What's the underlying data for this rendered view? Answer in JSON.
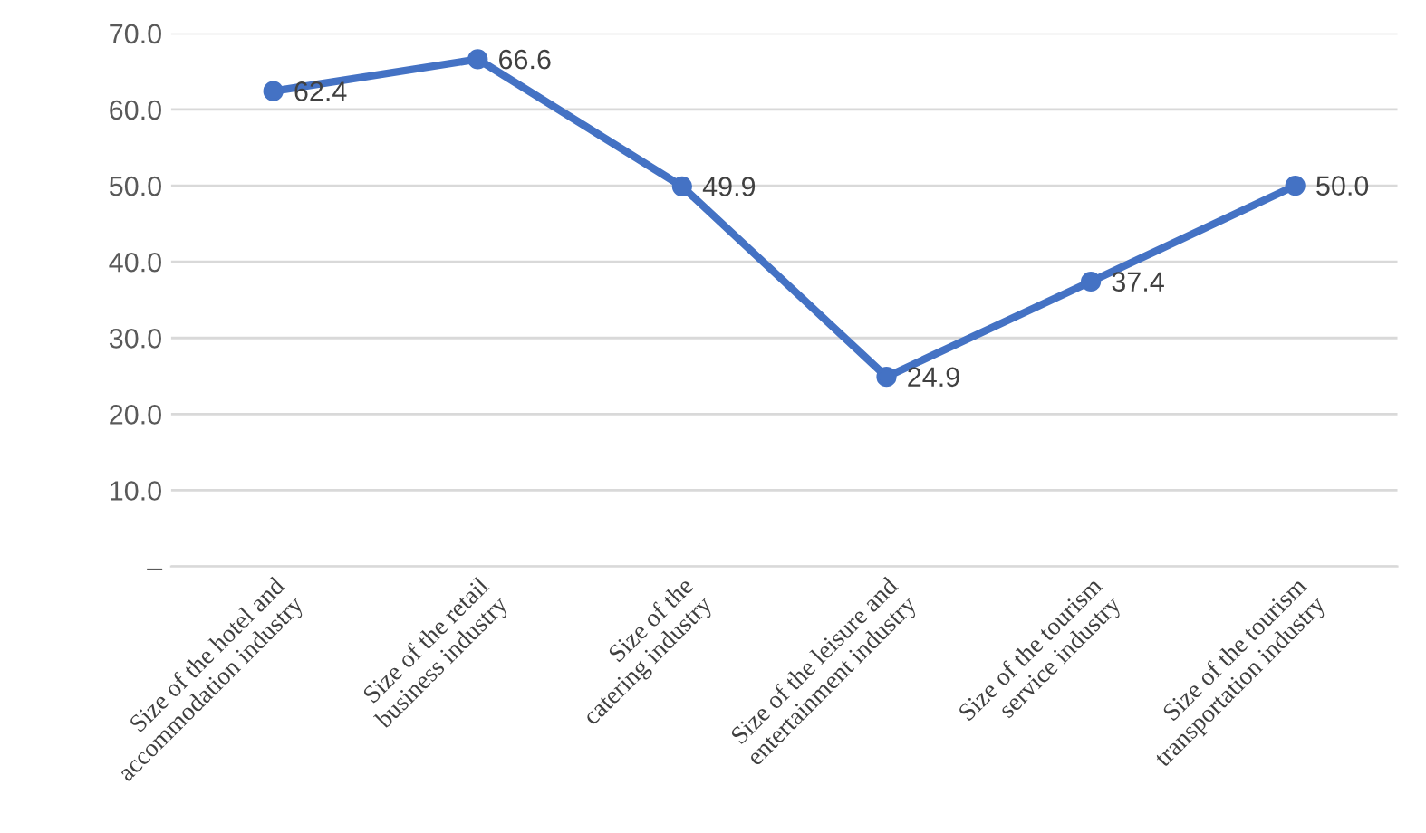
{
  "chart_data": {
    "type": "line",
    "categories": [
      "Size of the hotel and\naccommodation industry",
      "Size of the retail\nbusiness industry",
      "Size of the\ncatering industry",
      "Size of the leisure and\nentertainment industry",
      "Size of the tourism\nservice industry",
      "Size of the tourism\ntransportation industry"
    ],
    "series": [
      {
        "color": "#4472c4",
        "values": [
          62.4,
          66.6,
          49.9,
          24.9,
          37.4,
          50.0
        ]
      }
    ],
    "value_labels": [
      "62.4",
      "66.6",
      "49.9",
      "24.9",
      "37.4",
      "50.0"
    ],
    "ylim": [
      0,
      70
    ],
    "yticks": [
      {
        "value": 0,
        "label": "–"
      },
      {
        "value": 10,
        "label": "10.0"
      },
      {
        "value": 20,
        "label": "20.0"
      },
      {
        "value": 30,
        "label": "30.0"
      },
      {
        "value": 40,
        "label": "40.0"
      },
      {
        "value": 50,
        "label": "50.0"
      },
      {
        "value": 60,
        "label": "60.0"
      },
      {
        "value": 70,
        "label": "70.0"
      }
    ],
    "grid": "y",
    "marker": "circle",
    "line_style": "solid",
    "legend": false
  }
}
